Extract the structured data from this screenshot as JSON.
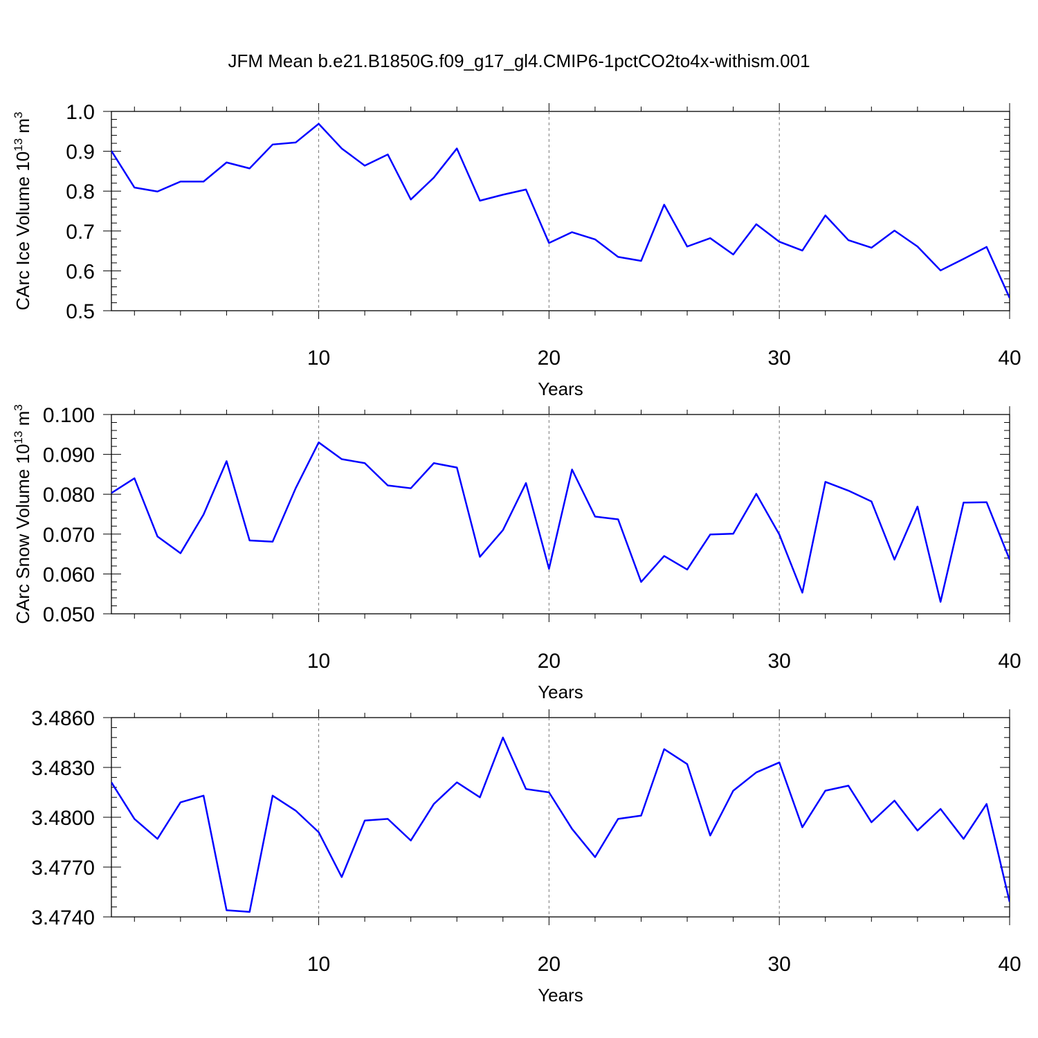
{
  "title": "JFM Mean b.e21.B1850G.f09_g17_gl4.CMIP6-1pctCO2to4x-withism.001",
  "line_color": "#0000ff",
  "chart_data": [
    {
      "type": "line",
      "title": "",
      "ylabel": "CArc Ice Volume",
      "ylabel_unit": "10",
      "ylabel_exp": "13",
      "ylabel_tail": "m",
      "ylabel_tail_exp": "3",
      "xlabel": "Years",
      "xlim": [
        1,
        40
      ],
      "ylim": [
        0.5,
        1.0
      ],
      "xticks": [
        10,
        20,
        30,
        40
      ],
      "xtick_labels": [
        "10",
        "20",
        "30",
        "40"
      ],
      "yticks": [
        0.5,
        0.6,
        0.7,
        0.8,
        0.9,
        1.0
      ],
      "ytick_labels": [
        "0.5",
        "0.6",
        "0.7",
        "0.8",
        "0.9",
        "1.0"
      ],
      "x": [
        1,
        2,
        3,
        4,
        5,
        6,
        7,
        8,
        9,
        10,
        11,
        12,
        13,
        14,
        15,
        16,
        17,
        18,
        19,
        20,
        21,
        22,
        23,
        24,
        25,
        26,
        27,
        28,
        29,
        30,
        31,
        32,
        33,
        34,
        35,
        36,
        37,
        38,
        39,
        40
      ],
      "values": [
        0.901,
        0.809,
        0.799,
        0.824,
        0.824,
        0.872,
        0.857,
        0.917,
        0.922,
        0.969,
        0.907,
        0.864,
        0.892,
        0.779,
        0.834,
        0.907,
        0.776,
        0.791,
        0.804,
        0.67,
        0.697,
        0.679,
        0.635,
        0.625,
        0.766,
        0.661,
        0.682,
        0.641,
        0.717,
        0.673,
        0.651,
        0.739,
        0.677,
        0.658,
        0.701,
        0.661,
        0.601,
        0.63,
        0.66,
        0.532
      ]
    },
    {
      "type": "line",
      "title": "",
      "ylabel": "CArc Snow Volume",
      "ylabel_unit": "10",
      "ylabel_exp": "13",
      "ylabel_tail": "m",
      "ylabel_tail_exp": "3",
      "xlabel": "Years",
      "xlim": [
        1,
        40
      ],
      "ylim": [
        0.05,
        0.1
      ],
      "xticks": [
        10,
        20,
        30,
        40
      ],
      "xtick_labels": [
        "10",
        "20",
        "30",
        "40"
      ],
      "yticks": [
        0.05,
        0.06,
        0.07,
        0.08,
        0.09,
        0.1
      ],
      "ytick_labels": [
        "0.050",
        "0.060",
        "0.070",
        "0.080",
        "0.090",
        "0.100"
      ],
      "x": [
        1,
        2,
        3,
        4,
        5,
        6,
        7,
        8,
        9,
        10,
        11,
        12,
        13,
        14,
        15,
        16,
        17,
        18,
        19,
        20,
        21,
        22,
        23,
        24,
        25,
        26,
        27,
        28,
        29,
        30,
        31,
        32,
        33,
        34,
        35,
        36,
        37,
        38,
        39,
        40
      ],
      "values": [
        0.0803,
        0.084,
        0.0694,
        0.0652,
        0.0749,
        0.0883,
        0.0684,
        0.0681,
        0.0815,
        0.093,
        0.0888,
        0.0878,
        0.0822,
        0.0815,
        0.0878,
        0.0867,
        0.0643,
        0.071,
        0.0828,
        0.0613,
        0.0862,
        0.0744,
        0.0737,
        0.058,
        0.0645,
        0.0611,
        0.0699,
        0.0701,
        0.0801,
        0.0699,
        0.0553,
        0.0831,
        0.0809,
        0.0782,
        0.0636,
        0.0769,
        0.053,
        0.0779,
        0.078,
        0.0636
      ]
    },
    {
      "type": "line",
      "title": "",
      "ylabel": "",
      "xlabel": "Years",
      "xlim": [
        1,
        40
      ],
      "ylim": [
        3.474,
        3.486
      ],
      "xticks": [
        10,
        20,
        30,
        40
      ],
      "xtick_labels": [
        "10",
        "20",
        "30",
        "40"
      ],
      "yticks": [
        3.474,
        3.477,
        3.48,
        3.483,
        3.486
      ],
      "ytick_labels": [
        "3.4740",
        "3.4770",
        "3.4800",
        "3.4830",
        "3.4860"
      ],
      "x": [
        1,
        2,
        3,
        4,
        5,
        6,
        7,
        8,
        9,
        10,
        11,
        12,
        13,
        14,
        15,
        16,
        17,
        18,
        19,
        20,
        21,
        22,
        23,
        24,
        25,
        26,
        27,
        28,
        29,
        30,
        31,
        32,
        33,
        34,
        35,
        36,
        37,
        38,
        39,
        40
      ],
      "values": [
        3.4821,
        3.4799,
        3.4787,
        3.4809,
        3.4813,
        3.4744,
        3.4743,
        3.4813,
        3.4804,
        3.4791,
        3.4764,
        3.4798,
        3.4799,
        3.4786,
        3.4808,
        3.4821,
        3.4812,
        3.4848,
        3.4817,
        3.4815,
        3.4793,
        3.4776,
        3.4799,
        3.4801,
        3.4841,
        3.4832,
        3.4789,
        3.4816,
        3.4827,
        3.4833,
        3.4794,
        3.4816,
        3.4819,
        3.4797,
        3.481,
        3.4792,
        3.4805,
        3.4787,
        3.4808,
        3.4749
      ]
    }
  ]
}
